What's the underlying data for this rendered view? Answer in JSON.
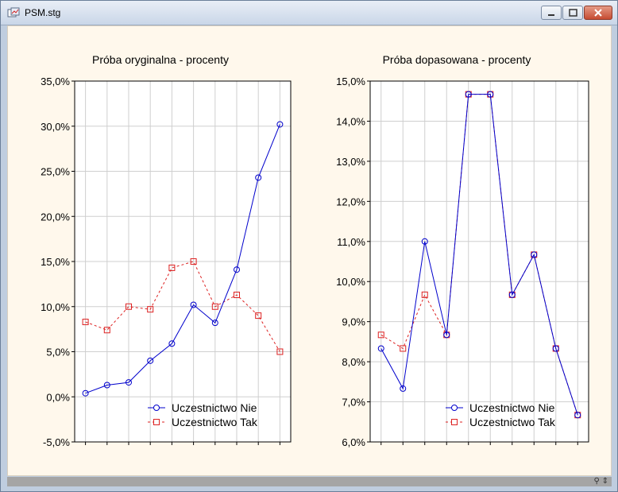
{
  "window": {
    "title": "PSM.stg",
    "icons": {
      "app": "chart-window-icon",
      "minimize": "minimize-icon",
      "maximize": "maximize-icon",
      "close": "close-icon",
      "resize": "resize-grip-icon"
    }
  },
  "chart_data": [
    {
      "type": "line",
      "title": "Próba oryginalna - procenty",
      "xlabel": "",
      "ylabel": "",
      "x": [
        1,
        2,
        3,
        4,
        5,
        6,
        7,
        8,
        9,
        10
      ],
      "ylim": [
        -5,
        35
      ],
      "yticks": [
        -5,
        0,
        5,
        10,
        15,
        20,
        25,
        30,
        35
      ],
      "ytick_labels": [
        "-5,0%",
        "0,0%",
        "5,0%",
        "10,0%",
        "15,0%",
        "20,0%",
        "25,0%",
        "30,0%",
        "35,0%"
      ],
      "grid": true,
      "legend_position": "bottom-right",
      "series": [
        {
          "name": "Uczestnictwo Nie",
          "color": "#0000cc",
          "marker": "circle",
          "dash": "solid",
          "values": [
            0.4,
            1.3,
            1.6,
            4.0,
            5.9,
            10.2,
            8.2,
            14.1,
            24.3,
            30.2
          ]
        },
        {
          "name": "Uczestnictwo Tak",
          "color": "#dd2222",
          "marker": "square",
          "dash": "dashed",
          "values": [
            8.3,
            7.4,
            10.0,
            9.7,
            14.3,
            15.0,
            10.0,
            11.3,
            9.0,
            5.0
          ]
        }
      ]
    },
    {
      "type": "line",
      "title": "Próba dopasowana - procenty",
      "xlabel": "",
      "ylabel": "",
      "x": [
        1,
        2,
        3,
        4,
        5,
        6,
        7,
        8,
        9,
        10
      ],
      "ylim": [
        6,
        15
      ],
      "yticks": [
        6,
        7,
        8,
        9,
        10,
        11,
        12,
        13,
        14,
        15
      ],
      "ytick_labels": [
        "6,0%",
        "7,0%",
        "8,0%",
        "9,0%",
        "10,0%",
        "11,0%",
        "12,0%",
        "13,0%",
        "14,0%",
        "15,0%"
      ],
      "grid": true,
      "legend_position": "bottom-right",
      "series": [
        {
          "name": "Uczestnictwo Nie",
          "color": "#0000cc",
          "marker": "circle",
          "dash": "solid",
          "values": [
            8.33,
            7.33,
            11.0,
            8.67,
            14.67,
            14.67,
            9.67,
            10.67,
            8.33,
            6.67
          ]
        },
        {
          "name": "Uczestnictwo Tak",
          "color": "#dd2222",
          "marker": "square",
          "dash": "dashed",
          "values": [
            8.67,
            8.33,
            9.67,
            8.67,
            14.67,
            14.67,
            9.67,
            10.67,
            8.33,
            6.67
          ]
        }
      ]
    }
  ]
}
